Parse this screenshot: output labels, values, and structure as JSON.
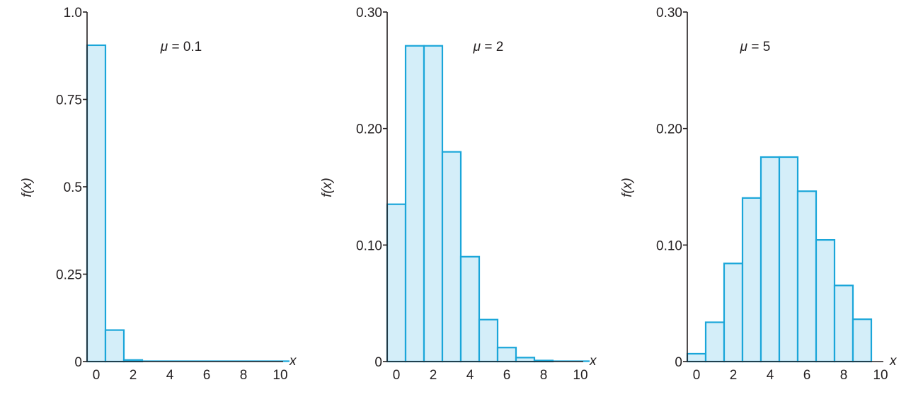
{
  "colors": {
    "bar_fill": "#d4eef9",
    "bar_stroke": "#1aa6d9",
    "axis": "#231f20"
  },
  "chart_data": [
    {
      "type": "bar",
      "annotation": "μ = 0.1",
      "xlabel": "x",
      "ylabel": "f(x)",
      "x": [
        0,
        1,
        2,
        3,
        4,
        5,
        6,
        7,
        8,
        9,
        10
      ],
      "values": [
        0.905,
        0.09,
        0.0045,
        0.0002,
        0,
        0,
        0,
        0,
        0,
        0,
        0
      ],
      "xlim": [
        0,
        10
      ],
      "ylim": [
        0,
        1.0
      ],
      "xticks": [
        "0",
        "2",
        "4",
        "6",
        "8",
        "10"
      ],
      "yticks": [
        "0",
        "0.25",
        "0.5",
        "0.75",
        "1.0"
      ],
      "ytick_values": [
        0,
        0.25,
        0.5,
        0.75,
        1.0
      ]
    },
    {
      "type": "bar",
      "annotation": "μ = 2",
      "xlabel": "x",
      "ylabel": "f(x)",
      "x": [
        0,
        1,
        2,
        3,
        4,
        5,
        6,
        7,
        8,
        9,
        10
      ],
      "values": [
        0.135,
        0.271,
        0.271,
        0.18,
        0.09,
        0.036,
        0.012,
        0.0034,
        0.0009,
        0.0002,
        0
      ],
      "xlim": [
        0,
        10
      ],
      "ylim": [
        0,
        0.3
      ],
      "xticks": [
        "0",
        "2",
        "4",
        "6",
        "8",
        "10"
      ],
      "yticks": [
        "0",
        "0.10",
        "0.20",
        "0.30"
      ],
      "ytick_values": [
        0,
        0.1,
        0.2,
        0.3
      ]
    },
    {
      "type": "bar",
      "annotation": "μ = 5",
      "xlabel": "x",
      "ylabel": "f(x)",
      "x": [
        0,
        1,
        2,
        3,
        4,
        5,
        6,
        7,
        8,
        9
      ],
      "values": [
        0.0067,
        0.0337,
        0.0842,
        0.1404,
        0.1755,
        0.1755,
        0.1462,
        0.1044,
        0.0653,
        0.0363
      ],
      "xlim": [
        0,
        10
      ],
      "ylim": [
        0,
        0.3
      ],
      "xticks": [
        "0",
        "2",
        "4",
        "6",
        "8",
        "10"
      ],
      "yticks": [
        "0",
        "0.10",
        "0.20",
        "0.30"
      ],
      "ytick_values": [
        0,
        0.1,
        0.2,
        0.3
      ]
    }
  ]
}
